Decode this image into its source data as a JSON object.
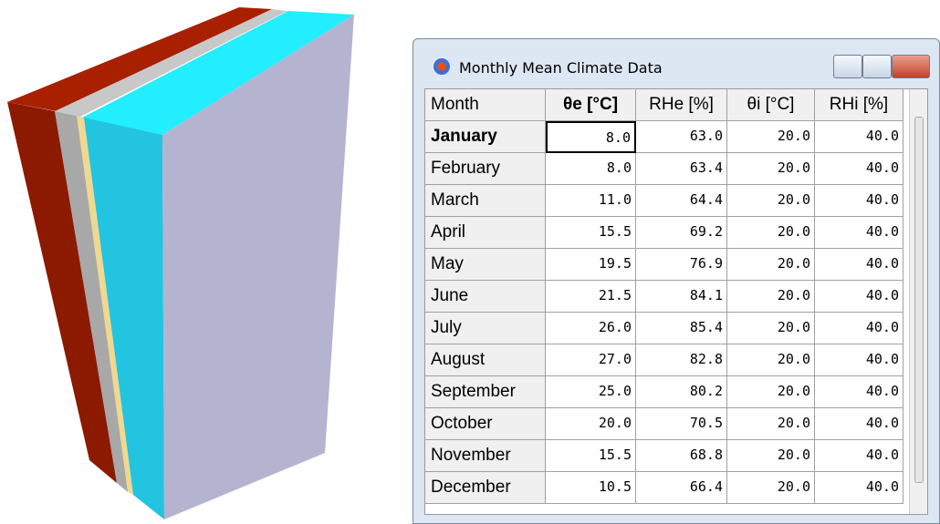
{
  "window": {
    "title": "Monthly Mean Climate Data"
  },
  "table": {
    "headers": [
      "Month",
      "θe [°C]",
      "RHe [%]",
      "θi [°C]",
      "RHi [%]"
    ],
    "rows": [
      [
        "January",
        "8.0",
        "63.0",
        "20.0",
        "40.0"
      ],
      [
        "February",
        "8.0",
        "63.4",
        "20.0",
        "40.0"
      ],
      [
        "March",
        "11.0",
        "64.4",
        "20.0",
        "40.0"
      ],
      [
        "April",
        "15.5",
        "69.2",
        "20.0",
        "40.0"
      ],
      [
        "May",
        "19.5",
        "76.9",
        "20.0",
        "40.0"
      ],
      [
        "June",
        "21.5",
        "84.1",
        "20.0",
        "40.0"
      ],
      [
        "July",
        "26.0",
        "85.4",
        "20.0",
        "40.0"
      ],
      [
        "August",
        "27.0",
        "82.8",
        "20.0",
        "40.0"
      ],
      [
        "September",
        "25.0",
        "80.2",
        "20.0",
        "40.0"
      ],
      [
        "October",
        "20.0",
        "70.5",
        "20.0",
        "40.0"
      ],
      [
        "November",
        "15.5",
        "68.8",
        "20.0",
        "40.0"
      ],
      [
        "December",
        "10.5",
        "66.4",
        "20.0",
        "40.0"
      ]
    ]
  }
}
